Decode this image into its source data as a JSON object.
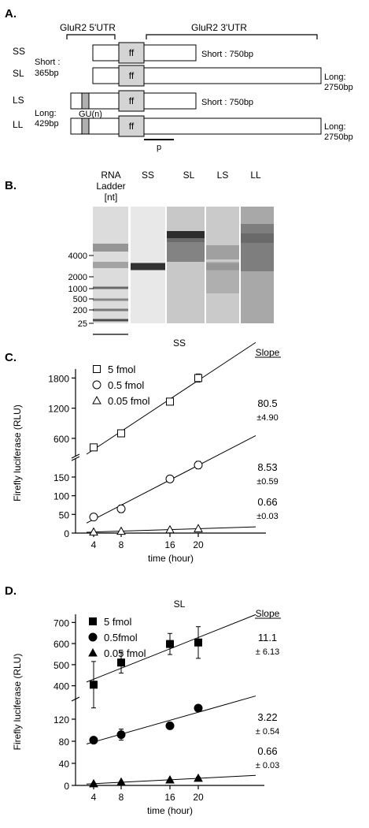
{
  "panels": {
    "A": "A.",
    "B": "B.",
    "C": "C.",
    "D": "D."
  },
  "panelA": {
    "utr5_label": "GluR2 5'UTR",
    "utr3_label": "GluR2 3'UTR",
    "constructs": [
      "SS",
      "SL",
      "LS",
      "LL"
    ],
    "short5_label": [
      "Short :",
      "365bp"
    ],
    "long5_label": [
      "Long:",
      "429bp"
    ],
    "ff_label": "ff",
    "gu_label": "GU(n)",
    "short3_label": "Short : 750bp",
    "long3_label": [
      "Long:",
      "2750bp"
    ],
    "probe_label": "p"
  },
  "panelB": {
    "ladder_header": [
      "RNA",
      "Ladder",
      "[nt]"
    ],
    "lanes": [
      "SS",
      "SL",
      "LS",
      "LL"
    ],
    "ladder_marks": [
      "4000",
      "2000",
      "1000",
      "500",
      "200",
      "25"
    ]
  },
  "chart_data": [
    {
      "type": "scatter",
      "title": "SS",
      "xlabel": "time (hour)",
      "ylabel": "Firefly luciferase (RLU)",
      "x": [
        "4",
        "8",
        "16",
        "20"
      ],
      "broken_y_axis": true,
      "upper_ticks": [
        "600",
        "1200",
        "1800"
      ],
      "lower_ticks": [
        "0",
        "50",
        "100",
        "150"
      ],
      "slope_header": "Slope",
      "marker_style": "open",
      "series": [
        {
          "name": "5 fmol",
          "marker": "square",
          "values": [
            420,
            700,
            1330,
            1800
          ],
          "errors": [
            30,
            40,
            30,
            80
          ],
          "slope": "80.5",
          "slope_err": "±4.90"
        },
        {
          "name": "0.5 fmol",
          "marker": "circle",
          "values": [
            43,
            65,
            145,
            182
          ],
          "errors": [
            3,
            10,
            4,
            10
          ],
          "slope": "8.53",
          "slope_err": "±0.59"
        },
        {
          "name": "0.05 fmol",
          "marker": "triangle",
          "values": [
            3,
            5,
            9,
            12
          ],
          "errors": [
            1,
            1,
            1,
            1
          ],
          "slope": "0.66",
          "slope_err": "±0.03"
        }
      ]
    },
    {
      "type": "scatter",
      "title": "SL",
      "xlabel": "time (hour)",
      "ylabel": "Firefly luciferase (RLU)",
      "x": [
        "4",
        "8",
        "16",
        "20"
      ],
      "broken_y_axis": true,
      "upper_ticks": [
        "400",
        "500",
        "600",
        "700"
      ],
      "lower_ticks": [
        "0",
        "40",
        "80",
        "120"
      ],
      "slope_header": "Slope",
      "marker_style": "filled",
      "series": [
        {
          "name": "5 fmol",
          "marker": "square",
          "values": [
            405,
            510,
            598,
            605
          ],
          "errors": [
            110,
            50,
            50,
            75
          ],
          "slope": "11.1",
          "slope_err": "± 6.13"
        },
        {
          "name": "0.5fmol",
          "marker": "circle",
          "values": [
            82,
            92,
            108,
            140
          ],
          "errors": [
            3,
            10,
            4,
            3
          ],
          "slope": "3.22",
          "slope_err": "± 0.54"
        },
        {
          "name": "0.05 fmol",
          "marker": "triangle",
          "values": [
            3,
            6,
            10,
            13
          ],
          "errors": [
            1,
            1,
            1,
            2
          ],
          "slope": "0.66",
          "slope_err": "± 0.03"
        }
      ]
    }
  ]
}
